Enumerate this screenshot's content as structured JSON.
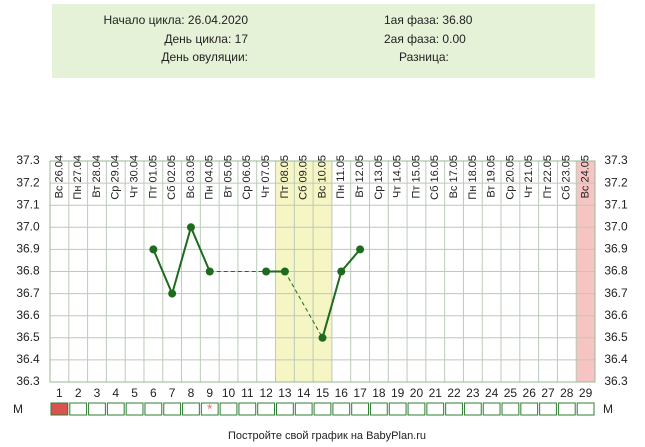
{
  "chart_data": {
    "type": "line",
    "info": {
      "left": [
        "Начало цикла: 26.04.2020",
        "День цикла: 17",
        "День овуляции:"
      ],
      "right": [
        "1ая фаза: 36.80",
        "2ая фаза: 0.00",
        "Разница:"
      ]
    },
    "categories": [
      "Вс 26.04",
      "Пн 27.04",
      "Вт 28.04",
      "Ср 29.04",
      "Чт 30.04",
      "Пт 01.05",
      "Сб 02.05",
      "Вс 03.05",
      "Пн 04.05",
      "Вт 05.05",
      "Ср 06.05",
      "Чт 07.05",
      "Пт 08.05",
      "Сб 09.05",
      "Вс 10.05",
      "Пн 11.05",
      "Вт 12.05",
      "Ср 13.05",
      "Чт 14.05",
      "Пт 15.05",
      "Сб 16.05",
      "Вс 17.05",
      "Пн 18.05",
      "Вт 19.05",
      "Ср 20.05",
      "Чт 21.05",
      "Пт 22.05",
      "Сб 23.05",
      "Вс 24.05"
    ],
    "days": [
      "1",
      "2",
      "3",
      "4",
      "5",
      "6",
      "7",
      "8",
      "9",
      "10",
      "11",
      "12",
      "13",
      "14",
      "15",
      "16",
      "17",
      "18",
      "19",
      "20",
      "21",
      "22",
      "23",
      "24",
      "25",
      "26",
      "27",
      "28",
      "29"
    ],
    "values": [
      null,
      null,
      null,
      null,
      null,
      36.9,
      36.7,
      37.0,
      36.8,
      null,
      null,
      36.8,
      36.8,
      null,
      36.5,
      36.8,
      36.9,
      null,
      null,
      null,
      null,
      null,
      null,
      null,
      null,
      null,
      null,
      null,
      null
    ],
    "color": "#1e6b1e",
    "ylim": [
      36.3,
      37.3
    ],
    "yticks": [
      36.3,
      36.4,
      36.5,
      36.6,
      36.7,
      36.8,
      36.9,
      {
        "value": 37,
        "label": "37.0"
      },
      37.1,
      37.2,
      37.3
    ],
    "row_label": "М",
    "footer": "Постройте свой график на BabyPlan.ru",
    "grid": true
  }
}
